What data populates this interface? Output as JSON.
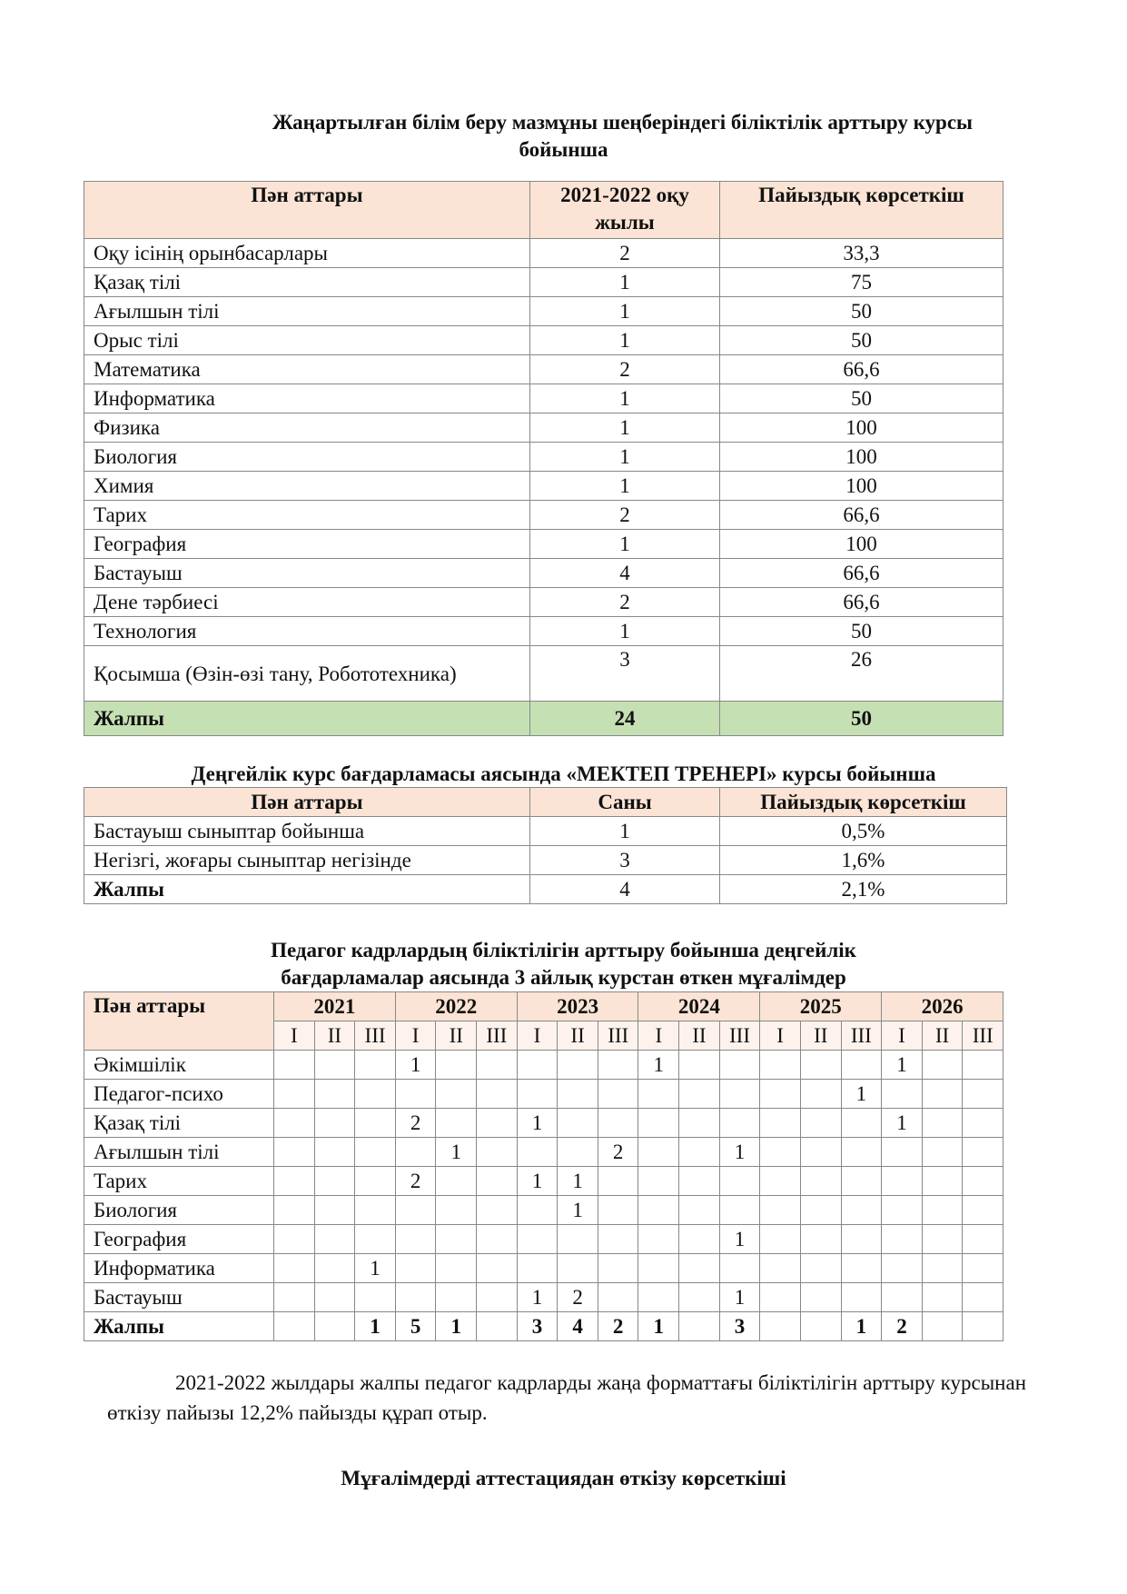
{
  "title1": [
    "Жаңартылған білім беру мазмұны шеңберіндегі біліктілік арттыру курсы",
    "бойынша"
  ],
  "table1": {
    "headers": [
      "Пән аттары",
      "2021-2022 оқу жылы",
      "Пайыздық көрсеткіш"
    ],
    "rows": [
      [
        "Оқу ісінің орынбасарлары",
        "2",
        "33,3"
      ],
      [
        "Қазақ тілі",
        "1",
        "75"
      ],
      [
        "Ағылшын тілі",
        "1",
        "50"
      ],
      [
        "Орыс тілі",
        "1",
        "50"
      ],
      [
        "Математика",
        "2",
        "66,6"
      ],
      [
        "Информатика",
        "1",
        "50"
      ],
      [
        "Физика",
        "1",
        "100"
      ],
      [
        "Биология",
        "1",
        "100"
      ],
      [
        "Химия",
        "1",
        "100"
      ],
      [
        "Тарих",
        "2",
        "66,6"
      ],
      [
        "География",
        "1",
        "100"
      ],
      [
        "Бастауыш",
        "4",
        "66,6"
      ],
      [
        "Дене тәрбиесі",
        "2",
        "66,6"
      ],
      [
        "Технология",
        "1",
        "50"
      ],
      [
        "Қосымша (Өзін-өзі тану, Робототехника)",
        "3",
        "26"
      ]
    ],
    "total": [
      "Жалпы",
      "24",
      "50"
    ]
  },
  "title2": "Деңгейлік  курс бағдарламасы аясында «МЕКТЕП ТРЕНЕРІ» курсы бойынша",
  "table2": {
    "headers": [
      "Пән аттары",
      "Саны",
      "Пайыздық көрсеткіш"
    ],
    "rows": [
      [
        "Бастауыш сыныптар бойынша",
        "1",
        "0,5%"
      ],
      [
        "Негізгі, жоғары сыныптар негізінде",
        "3",
        "1,6%"
      ]
    ],
    "total": [
      "Жалпы",
      "4",
      "2,1%"
    ]
  },
  "title3": [
    "Педагог кадрлардың біліктілігін арттыру бойынша деңгейлік",
    "бағдарламалар аясында 3 айлық курстан өткен мұғалімдер"
  ],
  "table3": {
    "header": "Пән аттары",
    "years": [
      "2021",
      "2022",
      "2023",
      "2024",
      "2025",
      "2026"
    ],
    "terms": [
      "I",
      "II",
      "III"
    ],
    "rows": [
      [
        "Әкімшілік",
        "",
        "",
        "",
        "1",
        "",
        "",
        "",
        "",
        "",
        "1",
        "",
        "",
        "",
        "",
        "",
        "1",
        "",
        ""
      ],
      [
        "Педагог-психо",
        "",
        "",
        "",
        "",
        "",
        "",
        "",
        "",
        "",
        "",
        "",
        "",
        "",
        "",
        "1",
        "",
        "",
        ""
      ],
      [
        "Қазақ тілі",
        "",
        "",
        "",
        "2",
        "",
        "",
        "1",
        "",
        "",
        "",
        "",
        "",
        "",
        "",
        "",
        "1",
        "",
        ""
      ],
      [
        "Ағылшын тілі",
        "",
        "",
        "",
        "",
        "1",
        "",
        "",
        "",
        "2",
        "",
        "",
        "1",
        "",
        "",
        "",
        "",
        "",
        ""
      ],
      [
        "Тарих",
        "",
        "",
        "",
        "2",
        "",
        "",
        "1",
        "1",
        "",
        "",
        "",
        "",
        "",
        "",
        "",
        "",
        "",
        ""
      ],
      [
        "Биология",
        "",
        "",
        "",
        "",
        "",
        "",
        "",
        "1",
        "",
        "",
        "",
        "",
        "",
        "",
        "",
        "",
        "",
        ""
      ],
      [
        "География",
        "",
        "",
        "",
        "",
        "",
        "",
        "",
        "",
        "",
        "",
        "",
        "1",
        "",
        "",
        "",
        "",
        "",
        ""
      ],
      [
        "Информатика",
        "",
        "",
        "1",
        "",
        "",
        "",
        "",
        "",
        "",
        "",
        "",
        "",
        "",
        "",
        "",
        "",
        "",
        ""
      ],
      [
        "Бастауыш",
        "",
        "",
        "",
        "",
        "",
        "",
        "1",
        "2",
        "",
        "",
        "",
        "1",
        "",
        "",
        "",
        "",
        "",
        ""
      ]
    ],
    "total": [
      "Жалпы",
      "",
      "",
      "1",
      "5",
      "1",
      "",
      "3",
      "4",
      "2",
      "1",
      "",
      "3",
      "",
      "",
      "1",
      "2",
      "",
      ""
    ]
  },
  "paragraph": "2021-2022 жылдары жалпы педагог кадрларды  жаңа форматтағы біліктілігін арттыру курсынан өткізу пайызы 12,2% пайызды құрап отыр.",
  "title4": "Мұғалімдерді аттестациядан өткізу көрсеткіші"
}
